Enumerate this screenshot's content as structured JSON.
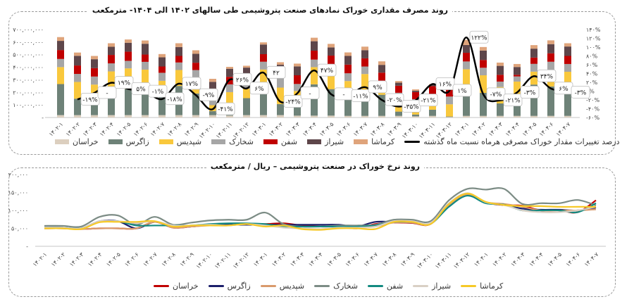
{
  "chart_data": [
    {
      "type": "bar",
      "stacked": true,
      "title": "روند مصرف مقداری خوراک نمادهای صنعت پتروشیمی طی سالهای ۱۴۰۲ الی ۱۴۰۴- مترمکعب",
      "categories": [
        "۱۴۰۲-۱",
        "۱۴۰۲-۲",
        "۱۴۰۲-۳",
        "۱۴۰۲-۴",
        "۱۴۰۲-۵",
        "۱۴۰۲-۶",
        "۱۴۰۲-۷",
        "۱۴۰۲-۸",
        "۱۴۰۲-۹",
        "۱۴۰۲-۱۰",
        "۱۴۰۲-۱۱",
        "۱۴۰۲-۱۲",
        "۱۴۰۳-۱",
        "۱۴۰۳-۲",
        "۱۴۰۳-۳",
        "۱۴۰۳-۴",
        "۱۴۰۳-۵",
        "۱۴۰۳-۶",
        "۱۴۰۳-۷",
        "۱۴۰۳-۸",
        "۱۴۰۳-۹",
        "۱۴۰۳-۱۰",
        "۱۴۰۳-۱۱",
        "۱۴۰۳-۱۲",
        "۱۴۰۴-۱",
        "۱۴۰۴-۲",
        "۱۴۰۴-۳",
        "۱۴۰۴-۴",
        "۱۴۰۴-۵",
        "۱۴۰۴-۶",
        "۱۴۰۴-۷"
      ],
      "ylim": [
        0,
        700000000
      ],
      "y_ticks": [
        "-",
        "۱۰۰,۰۰۰,۰۰۰",
        "۲۰۰,۰۰۰,۰۰۰",
        "۳۰۰,۰۰۰,۰۰۰",
        "۴۰۰,۰۰۰,۰۰۰",
        "۵۰۰,۰۰۰,۰۰۰",
        "۶۰۰,۰۰۰,۰۰۰",
        "۷۰۰,۰۰۰,۰۰۰"
      ],
      "y2lim": [
        -60,
        140
      ],
      "y2_ticks": [
        "-۶۰%",
        "-۴۰%",
        "-۲۰%",
        "۰%",
        "۲۰%",
        "۴۰%",
        "۶۰%",
        "۸۰%",
        "۱۰۰%",
        "۱۲۰%",
        "۱۴۰%"
      ],
      "grid": false,
      "legend": "bottom",
      "series": [
        {
          "name": "خراسان",
          "color": "#dccfbf",
          "values": [
            19,
            19,
            19,
            19,
            19,
            19,
            19,
            19,
            19,
            19,
            15,
            19,
            19,
            19,
            15,
            15,
            15,
            13,
            13,
            13,
            13,
            9,
            13,
            4,
            13,
            13,
            13,
            13,
            13,
            13,
            13
          ]
        },
        {
          "name": "زاگرس",
          "color": "#6e8278",
          "values": [
            247,
            131,
            112,
            168,
            209,
            209,
            150,
            232,
            172,
            32,
            28,
            135,
            232,
            88,
            159,
            249,
            211,
            193,
            211,
            168,
            34,
            15,
            49,
            4,
            236,
            183,
            99,
            165,
            249,
            234,
            226
          ]
        },
        {
          "name": "شپدیس",
          "color": "#f9c83c",
          "values": [
            135,
            133,
            131,
            180,
            163,
            153,
            123,
            127,
            131,
            47,
            159,
            75,
            131,
            131,
            37,
            137,
            144,
            84,
            122,
            56,
            75,
            75,
            75,
            97,
            135,
            140,
            131,
            108,
            103,
            133,
            125
          ]
        },
        {
          "name": "شخارک",
          "color": "#a6a6a6",
          "values": [
            65,
            64,
            64,
            64,
            60,
            62,
            64,
            60,
            56,
            56,
            62,
            60,
            62,
            112,
            56,
            60,
            56,
            62,
            60,
            56,
            75,
            47,
            47,
            62,
            62,
            60,
            43,
            41,
            62,
            64,
            62
          ]
        },
        {
          "name": "شفن",
          "color": "#c00000",
          "values": [
            71,
            67,
            67,
            67,
            73,
            58,
            50,
            52,
            58,
            65,
            60,
            56,
            60,
            19,
            69,
            71,
            67,
            69,
            65,
            64,
            56,
            56,
            65,
            62,
            69,
            62,
            54,
            13,
            50,
            67,
            64
          ]
        },
        {
          "name": "شیراز",
          "color": "#5e464a",
          "values": [
            73,
            77,
            71,
            65,
            71,
            86,
            73,
            71,
            71,
            65,
            64,
            52,
            77,
            52,
            71,
            75,
            65,
            69,
            65,
            62,
            24,
            11,
            11,
            9,
            62,
            75,
            71,
            62,
            71,
            73,
            75
          ]
        },
        {
          "name": "کرماشا",
          "color": "#dfa47b",
          "values": [
            30,
            26,
            26,
            28,
            26,
            26,
            26,
            30,
            28,
            24,
            15,
            15,
            17,
            19,
            22,
            28,
            28,
            28,
            28,
            28,
            13,
            11,
            6,
            0,
            41,
            28,
            26,
            24,
            28,
            30,
            26
          ]
        }
      ],
      "series_values_multiplier_note": "",
      "line_series": {
        "name": "درصد تغییرات مقدار خوراک مصرفی هرماه نسبت ماه گذشته",
        "color": "#000000",
        "values": [
          null,
          -19,
          -4,
          19,
          5,
          -1,
          -18,
          17,
          -9,
          -41,
          26,
          6,
          42,
          -24,
          -5,
          47,
          -7,
          -11,
          9,
          -20,
          -35,
          -21,
          16,
          1,
          122,
          -7,
          -21,
          -3,
          34,
          6,
          -3
        ],
        "labels": [
          null,
          "-۱۹%",
          "-",
          "۱۹%",
          "۵%",
          "-۱%",
          "-۱۸%",
          "۱۷%",
          "-۹%",
          "-۴۱%",
          "۲۶%",
          "۶%",
          "۴۲",
          "-۲۴%",
          "-",
          "۴۷%",
          "-",
          "-۱۱%",
          "۹%",
          "-۲۰%",
          "-۳۵%",
          "-۲۱%",
          "۱۶%",
          "۱%",
          "۱۲۲%",
          "-۷%",
          "-۲۱%",
          "-۳%",
          "۳۴%",
          "۶%",
          "-۳%"
        ]
      }
    },
    {
      "type": "line",
      "title": "روند نرخ خوراک در صنعت پتروشیمی – ریال / مترمکعب",
      "categories": [
        "۱۴۰۲-۱",
        "۱۴۰۲-۲",
        "۱۴۰۲-۳",
        "۱۴۰۲-۴",
        "۱۴۰۲-۵",
        "۱۴۰۲-۶",
        "۱۴۰۲-۷",
        "۱۴۰۲-۸",
        "۱۴۰۲-۹",
        "۱۴۰۲-۱۰",
        "۱۴۰۲-۱۱",
        "۱۴۰۲-۱۲",
        "۱۴۰۳-۱",
        "۱۴۰۳-۲",
        "۱۴۰۳-۳",
        "۱۴۰۳-۴",
        "۱۴۰۳-۵",
        "۱۴۰۳-۶",
        "۱۴۰۳-۷",
        "۱۴۰۳-۸",
        "۱۴۰۳-۹",
        "۱۴۰۳-۱۰",
        "۱۴۰۳-۱۱",
        "۱۴۰۳-۱۲",
        "۱۴۰۴-۱",
        "۱۴۰۴-۲",
        "۱۴۰۴-۳",
        "۱۴۰۴-۴",
        "۱۴۰۴-۵",
        "۱۴۰۴-۶",
        "۱۴۰۴-۷"
      ],
      "ylim": [
        0,
        200000
      ],
      "y_ticks": [
        "-",
        "۵۰,۰۰۰",
        "۱۰۰,۰۰۰",
        "۱۵۰,۰۰۰",
        "۲۰۰,۰۰۰"
      ],
      "grid": false,
      "legend": "bottom",
      "series": [
        {
          "name": "خراسان",
          "color": "#c00000",
          "values": [
            50000,
            50000,
            48000,
            50000,
            50000,
            50000,
            68000,
            52000,
            55000,
            60000,
            62000,
            62000,
            62000,
            64000,
            58000,
            55000,
            55000,
            50000,
            62000,
            66000,
            65000,
            62000,
            118000,
            145000,
            122000,
            115000,
            113000,
            100000,
            100000,
            95000,
            128000
          ]
        },
        {
          "name": "زاگرس",
          "color": "#1c1f6b",
          "values": [
            52000,
            52000,
            50000,
            70000,
            70000,
            50000,
            68000,
            55000,
            55000,
            60000,
            60000,
            60000,
            60000,
            60000,
            60000,
            60000,
            60000,
            55000,
            68000,
            68000,
            66000,
            63000,
            115000,
            145000,
            122000,
            115000,
            105000,
            102000,
            102000,
            100000,
            108000
          ]
        },
        {
          "name": "شپدیس",
          "color": "#d99a6c",
          "values": [
            50000,
            50000,
            48000,
            50000,
            50000,
            50000,
            68000,
            52000,
            55000,
            58000,
            58000,
            62000,
            56000,
            58000,
            50000,
            46000,
            52000,
            52000,
            55000,
            66000,
            66000,
            62000,
            115000,
            144000,
            123000,
            118000,
            110000,
            100000,
            100000,
            100000,
            103000
          ]
        },
        {
          "name": "شخارک",
          "color": "#7c8c85",
          "values": [
            57000,
            57000,
            55000,
            82000,
            86000,
            60000,
            82000,
            60000,
            66000,
            72000,
            74000,
            74000,
            94000,
            62000,
            55000,
            55000,
            58000,
            58000,
            60000,
            74000,
            74000,
            70000,
            128000,
            160000,
            158000,
            160000,
            118000,
            120000,
            120000,
            129000,
            114000
          ]
        },
        {
          "name": "شفن",
          "color": "#138a80",
          "values": [
            52000,
            52000,
            50000,
            68000,
            70000,
            58000,
            58000,
            58000,
            58000,
            62000,
            64000,
            64000,
            62000,
            55000,
            55000,
            55000,
            55000,
            55000,
            58000,
            68000,
            68000,
            63000,
            110000,
            141000,
            120000,
            116000,
            100000,
            100000,
            100000,
            95000,
            120000
          ]
        },
        {
          "name": "شیراز",
          "color": "#d9d0c5",
          "values": [
            52000,
            52000,
            50000,
            70000,
            70000,
            65000,
            70000,
            58000,
            58000,
            60000,
            58000,
            62000,
            58000,
            52000,
            50000,
            48000,
            52000,
            52000,
            55000,
            70000,
            70000,
            65000,
            120000,
            148000,
            123000,
            115000,
            100000,
            95000,
            95000,
            100000,
            110000
          ]
        },
        {
          "name": "کرماشا",
          "color": "#f6c927",
          "values": [
            50000,
            50000,
            48000,
            67000,
            68000,
            68000,
            70000,
            55000,
            58000,
            58000,
            58000,
            62000,
            55000,
            58000,
            48000,
            46000,
            50000,
            50000,
            48000,
            68000,
            68000,
            62000,
            118000,
            147000,
            124000,
            115000,
            112000,
            112000,
            110000,
            110000,
            110000
          ]
        }
      ]
    }
  ]
}
